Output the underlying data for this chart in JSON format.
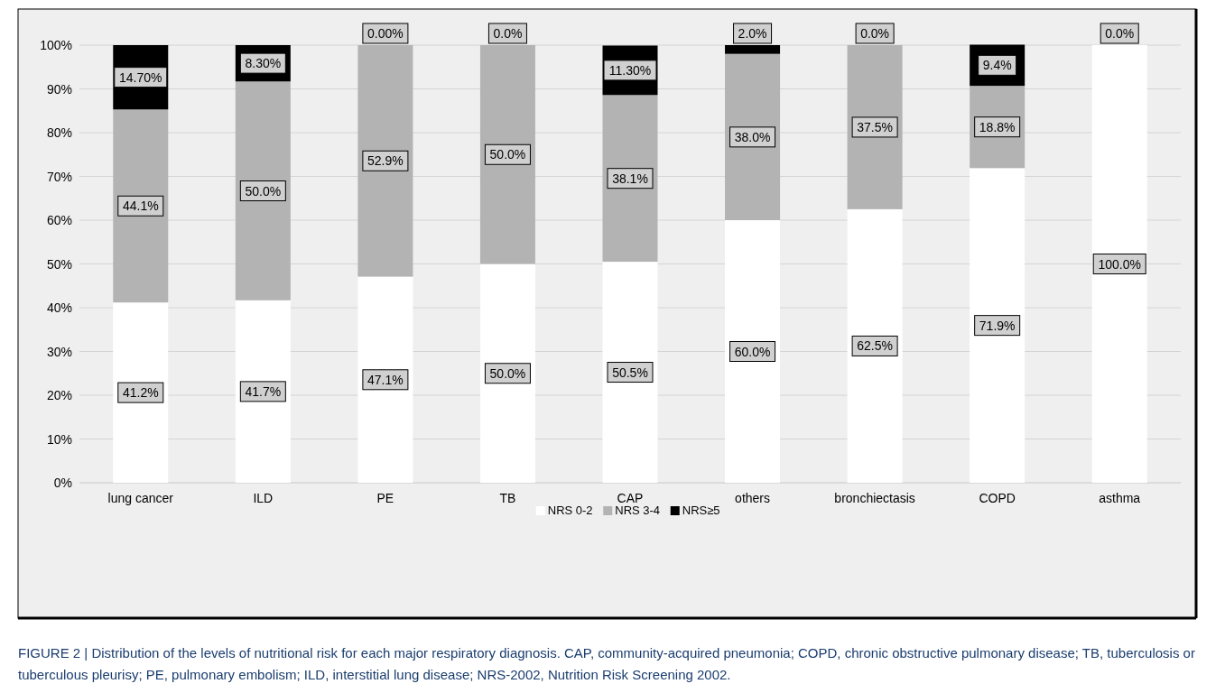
{
  "chart_data": {
    "type": "bar",
    "stacked": true,
    "categories": [
      "lung cancer",
      "ILD",
      "PE",
      "TB",
      "CAP",
      "others",
      "bronchiectasis",
      "COPD",
      "asthma"
    ],
    "series": [
      {
        "name": "NRS 0-2",
        "color": "#ffffff",
        "values": [
          41.2,
          41.7,
          47.1,
          50.0,
          50.5,
          60.0,
          62.5,
          71.9,
          100.0
        ],
        "value_labels": [
          "41.2%",
          "41.7%",
          "47.1%",
          "50.0%",
          "50.5%",
          "60.0%",
          "62.5%",
          "71.9%",
          "100.0%"
        ]
      },
      {
        "name": "NRS 3-4",
        "color": "#b3b3b3",
        "values": [
          44.1,
          50.0,
          52.9,
          50.0,
          38.1,
          38.0,
          37.5,
          18.8,
          null
        ],
        "value_labels": [
          "44.1%",
          "50.0%",
          "52.9%",
          "50.0%",
          "38.1%",
          "38.0%",
          "37.5%",
          "18.8%",
          null
        ]
      },
      {
        "name": "NRS≥5",
        "color": "#000000",
        "values": [
          14.7,
          8.3,
          0,
          0,
          11.3,
          2.0,
          0,
          9.4,
          0
        ],
        "value_labels": [
          "14.70%",
          "8.30%",
          "0.00%",
          "0.0%",
          "11.30%",
          "2.0%",
          "0.0%",
          "9.4%",
          "0.0%"
        ]
      }
    ],
    "ylim": [
      0,
      100
    ],
    "yticks": [
      {
        "value": 0,
        "label": "0%"
      },
      {
        "value": 10,
        "label": "10%"
      },
      {
        "value": 20,
        "label": "20%"
      },
      {
        "value": 30,
        "label": "30%"
      },
      {
        "value": 40,
        "label": "40%"
      },
      {
        "value": 50,
        "label": "50%"
      },
      {
        "value": 60,
        "label": "60%"
      },
      {
        "value": 70,
        "label": "70%"
      },
      {
        "value": 80,
        "label": "80%"
      },
      {
        "value": 90,
        "label": "90%"
      },
      {
        "value": 100,
        "label": "100%"
      }
    ],
    "grid": "y",
    "legend": "bottom",
    "annotations": [
      "FIGURE 2 | Distribution of the levels of nutritional risk for each major respiratory diagnosis. CAP, community-acquired pneumonia; COPD, chronic obstructive pulmonary disease; TB, tuberculosis or tuberculous pleurisy; PE, pulmonary embolism; ILD, interstitial lung disease; NRS-2002, Nutrition Risk Screening 2002."
    ]
  }
}
